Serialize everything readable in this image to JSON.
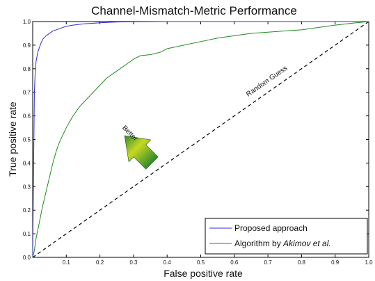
{
  "chart_data": {
    "type": "line",
    "title": "Channel-Mismatch-Metric Performance",
    "xlabel": "False positive rate",
    "ylabel": "True positive rate",
    "xlim": [
      0,
      1
    ],
    "ylim": [
      0,
      1
    ],
    "x_ticks": [
      "0.1",
      "0.2",
      "0.3",
      "0.4",
      "0.5",
      "0.6",
      "0.7",
      "0.8",
      "0.9",
      "1.0"
    ],
    "y_ticks": [
      "0.0",
      "0.1",
      "0.2",
      "0.3",
      "0.4",
      "0.5",
      "0.6",
      "0.7",
      "0.8",
      "0.9",
      "1.0"
    ],
    "grid": false,
    "legend_position": "bottom-right",
    "series": [
      {
        "name": "Proposed approach",
        "color": "#2b2bd6",
        "x": [
          0,
          0.002,
          0.004,
          0.005,
          0.007,
          0.01,
          0.015,
          0.02,
          0.025,
          0.03,
          0.04,
          0.05,
          0.06,
          0.08,
          0.1,
          0.12,
          0.15,
          0.2,
          0.25,
          0.3,
          0.4,
          0.5,
          0.6,
          0.7,
          0.8,
          0.9,
          1.0
        ],
        "y": [
          0,
          0.3,
          0.55,
          0.7,
          0.77,
          0.83,
          0.87,
          0.89,
          0.91,
          0.925,
          0.94,
          0.95,
          0.96,
          0.97,
          0.98,
          0.985,
          0.99,
          0.995,
          0.998,
          0.999,
          1.0,
          1.0,
          1.0,
          1.0,
          1.0,
          1.0,
          1.0
        ]
      },
      {
        "name": "Algorithm by Akimov et al.",
        "name_plain": "Algorithm by ",
        "name_italic": "Akimov et al.",
        "color": "#1e8a1e",
        "x": [
          0,
          0.005,
          0.01,
          0.02,
          0.03,
          0.04,
          0.05,
          0.06,
          0.07,
          0.08,
          0.09,
          0.1,
          0.12,
          0.14,
          0.16,
          0.18,
          0.2,
          0.22,
          0.25,
          0.28,
          0.3,
          0.32,
          0.35,
          0.38,
          0.4,
          0.45,
          0.5,
          0.55,
          0.6,
          0.65,
          0.7,
          0.75,
          0.8,
          0.85,
          0.9,
          0.95,
          1.0
        ],
        "y": [
          0,
          0.03,
          0.08,
          0.15,
          0.22,
          0.28,
          0.34,
          0.4,
          0.45,
          0.49,
          0.52,
          0.55,
          0.6,
          0.64,
          0.67,
          0.7,
          0.73,
          0.76,
          0.79,
          0.82,
          0.84,
          0.855,
          0.86,
          0.87,
          0.885,
          0.9,
          0.915,
          0.93,
          0.94,
          0.95,
          0.955,
          0.96,
          0.965,
          0.975,
          0.985,
          0.993,
          1.0
        ]
      }
    ],
    "reference_line": {
      "label": "Random Guess",
      "x": [
        0,
        1
      ],
      "y": [
        0,
        1
      ]
    },
    "annotation": {
      "label": "Better"
    }
  }
}
